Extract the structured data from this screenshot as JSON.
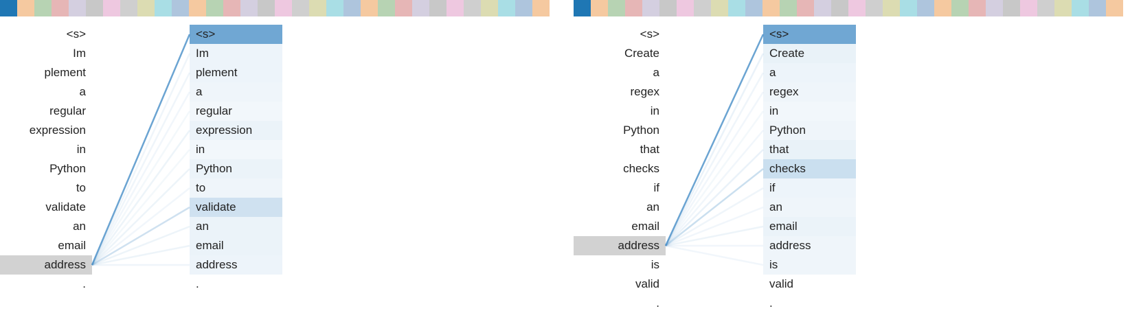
{
  "head_colors": [
    "#1f77b4",
    "#f5c9a0",
    "#b7d3b3",
    "#e6b6b6",
    "#d4cfe0",
    "#c8c8c8",
    "#eec8e0",
    "#cfcfcf",
    "#dcdcb2",
    "#a9dee5",
    "#aec5dd",
    "#f5c9a0",
    "#b7d3b3",
    "#e6b6b6",
    "#d4cfe0",
    "#c8c8c8",
    "#eec8e0",
    "#cfcfcf",
    "#dcdcb2",
    "#a9dee5",
    "#aec5dd",
    "#f5c9a0",
    "#b7d3b3",
    "#e6b6b6",
    "#d4cfe0",
    "#c8c8c8",
    "#eec8e0",
    "#cfcfcf",
    "#dcdcb2",
    "#a9dee5",
    "#aec5dd",
    "#f5c9a0"
  ],
  "attention_color": "#4a90c8",
  "panels": [
    {
      "tokens": [
        "<s>",
        "Im",
        "plement",
        "a",
        "regular",
        "expression",
        "in",
        "Python",
        "to",
        "validate",
        "an",
        "email",
        "address",
        "."
      ],
      "selected_index": 12,
      "weights": [
        0.62,
        0.04,
        0.04,
        0.03,
        0.02,
        0.05,
        0.02,
        0.05,
        0.03,
        0.18,
        0.05,
        0.05,
        0.04,
        0.0
      ]
    },
    {
      "tokens": [
        "<s>",
        "Create",
        "a",
        "regex",
        "in",
        "Python",
        "that",
        "checks",
        "if",
        "an",
        "email",
        "address",
        "is",
        "valid",
        "."
      ],
      "selected_index": 11,
      "weights": [
        0.62,
        0.06,
        0.04,
        0.03,
        0.02,
        0.03,
        0.06,
        0.2,
        0.04,
        0.03,
        0.05,
        0.03,
        0.03,
        0.0,
        0.0
      ]
    }
  ]
}
